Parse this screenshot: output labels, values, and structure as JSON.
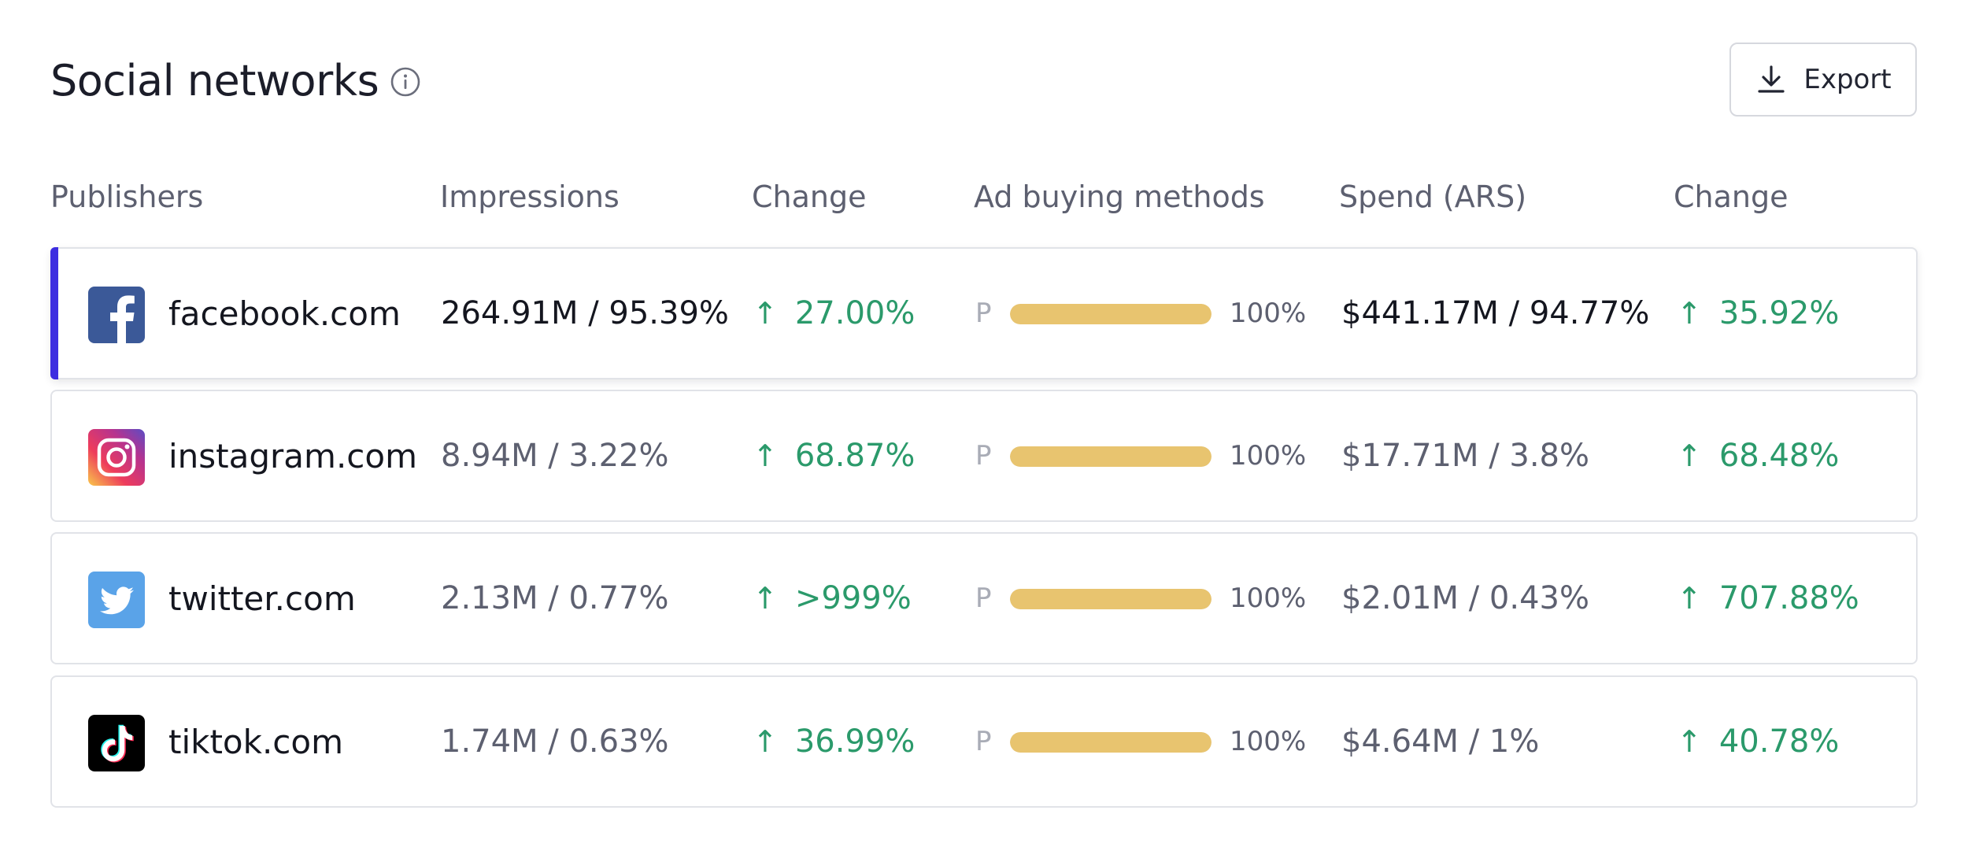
{
  "header": {
    "title": "Social networks",
    "info_icon": "info-circle-icon",
    "export_label": "Export",
    "export_icon": "download-icon"
  },
  "columns": {
    "publishers": "Publishers",
    "impressions": "Impressions",
    "change": "Change",
    "ad_buying": "Ad buying methods",
    "spend": "Spend (ARS)",
    "spend_change": "Change"
  },
  "colors": {
    "accent": "#3d2ee0",
    "positive": "#2b9a6b",
    "bar": "#e8c46f"
  },
  "rows": [
    {
      "domain": "facebook.com",
      "icon": "facebook-icon",
      "impressions": "264.91M / 95.39%",
      "change": "27.00%",
      "method_tag": "P",
      "method_share": 1.0,
      "method_pct": "100%",
      "spend": "$441.17M / 94.77%",
      "spend_change": "35.92%",
      "selected": true
    },
    {
      "domain": "instagram.com",
      "icon": "instagram-icon",
      "impressions": "8.94M / 3.22%",
      "change": "68.87%",
      "method_tag": "P",
      "method_share": 1.0,
      "method_pct": "100%",
      "spend": "$17.71M / 3.8%",
      "spend_change": "68.48%",
      "selected": false
    },
    {
      "domain": "twitter.com",
      "icon": "twitter-icon",
      "impressions": "2.13M / 0.77%",
      "change": ">999%",
      "method_tag": "P",
      "method_share": 1.0,
      "method_pct": "100%",
      "spend": "$2.01M / 0.43%",
      "spend_change": "707.88%",
      "selected": false
    },
    {
      "domain": "tiktok.com",
      "icon": "tiktok-icon",
      "impressions": "1.74M / 0.63%",
      "change": "36.99%",
      "method_tag": "P",
      "method_share": 1.0,
      "method_pct": "100%",
      "spend": "$4.64M / 1%",
      "spend_change": "40.78%",
      "selected": false
    }
  ]
}
